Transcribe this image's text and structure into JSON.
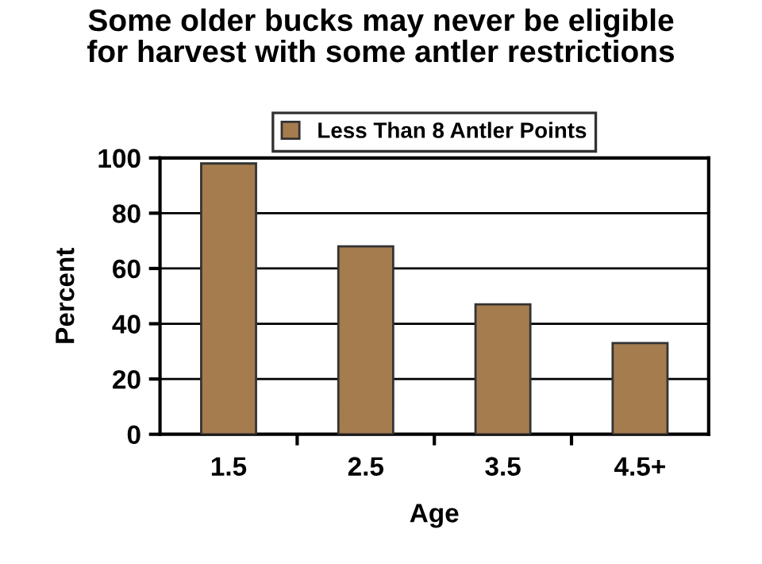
{
  "chart_data": {
    "type": "bar",
    "title": "Some older bucks may never be eligible\nfor harvest with some antler restrictions",
    "xlabel": "Age",
    "ylabel": "Percent",
    "categories": [
      "1.5",
      "2.5",
      "3.5",
      "4.5+"
    ],
    "series": [
      {
        "name": "Less Than 8 Antler Points",
        "color": "#a57c4e",
        "values": [
          98,
          68,
          47,
          33
        ]
      }
    ],
    "ylim": [
      0,
      100
    ],
    "yticks": [
      0,
      20,
      40,
      60,
      80,
      100
    ],
    "grid": "y",
    "legend": "top"
  }
}
